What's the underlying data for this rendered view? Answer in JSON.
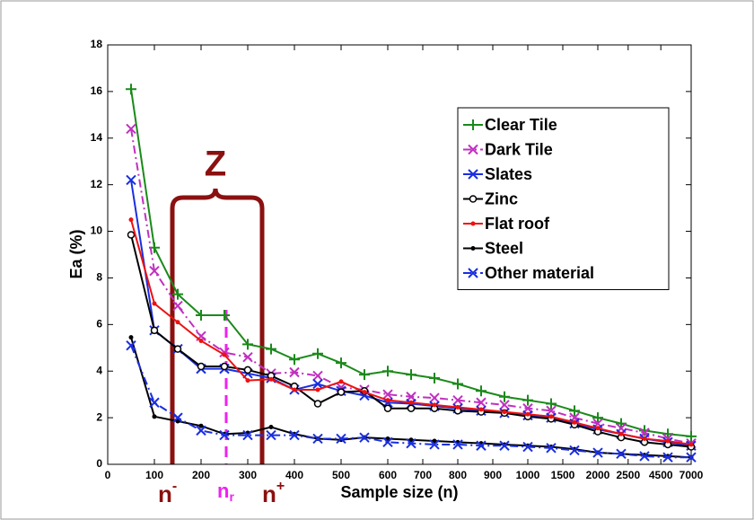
{
  "chart_data": {
    "type": "line",
    "x_label": "Sample size (n)",
    "y_label": "Ea (%)",
    "x": [
      1,
      2,
      3,
      4,
      5,
      6,
      7,
      8,
      9,
      10,
      11,
      12,
      13,
      14,
      15,
      16,
      17,
      18,
      19,
      20,
      21,
      22,
      23,
      24,
      25
    ],
    "xlim": [
      0,
      25
    ],
    "xticks": [
      {
        "value": 0,
        "label": "0"
      },
      {
        "value": 2,
        "label": "100"
      },
      {
        "value": 4,
        "label": "200"
      },
      {
        "value": 6,
        "label": "300"
      },
      {
        "value": 8,
        "label": "400"
      },
      {
        "value": 10,
        "label": "500"
      },
      {
        "value": 12,
        "label": "600"
      },
      {
        "value": 13.5,
        "label": "700"
      },
      {
        "value": 15,
        "label": "800"
      },
      {
        "value": 16.5,
        "label": "900"
      },
      {
        "value": 18,
        "label": "1000"
      },
      {
        "value": 19.5,
        "label": "1500"
      },
      {
        "value": 21,
        "label": "2000"
      },
      {
        "value": 22.3,
        "label": "2500"
      },
      {
        "value": 23.7,
        "label": "4500"
      },
      {
        "value": 25,
        "label": "7000"
      }
    ],
    "ylim": [
      0,
      18
    ],
    "yticks": [
      0,
      2,
      4,
      6,
      8,
      10,
      12,
      14,
      16,
      18
    ],
    "legend": "upper right",
    "series": [
      {
        "name": "Clear Tile",
        "color": "#1a8a1a",
        "marker": "plus",
        "dash": "solid",
        "values": [
          16.1,
          9.3,
          7.3,
          6.4,
          6.4,
          5.15,
          4.95,
          4.5,
          4.75,
          4.35,
          3.85,
          4.0,
          3.85,
          3.7,
          3.45,
          3.15,
          2.9,
          2.75,
          2.6,
          2.3,
          2.0,
          1.75,
          1.45,
          1.3,
          1.2
        ]
      },
      {
        "name": "Dark Tile",
        "color": "#c030c0",
        "marker": "x",
        "dash": "dashdot",
        "values": [
          14.4,
          8.3,
          6.8,
          5.5,
          4.8,
          4.6,
          3.9,
          3.95,
          3.8,
          3.3,
          3.2,
          3.0,
          2.9,
          2.85,
          2.75,
          2.65,
          2.55,
          2.4,
          2.3,
          2.0,
          1.75,
          1.55,
          1.35,
          1.1,
          0.9
        ]
      },
      {
        "name": "Slates",
        "color": "#1a2ee0",
        "marker": "x",
        "dash": "solid",
        "values": [
          12.2,
          5.75,
          4.95,
          4.1,
          4.1,
          3.9,
          3.7,
          3.2,
          3.45,
          3.15,
          2.95,
          2.65,
          2.6,
          2.5,
          2.4,
          2.3,
          2.2,
          2.1,
          2.0,
          1.75,
          1.5,
          1.3,
          1.1,
          0.95,
          0.8
        ]
      },
      {
        "name": "Zinc",
        "color": "#000000",
        "marker": "circle",
        "dash": "solid",
        "values": [
          9.85,
          5.75,
          4.95,
          4.2,
          4.2,
          4.05,
          3.8,
          3.35,
          2.6,
          3.1,
          3.15,
          2.4,
          2.4,
          2.4,
          2.3,
          2.25,
          2.2,
          2.05,
          1.95,
          1.7,
          1.4,
          1.15,
          0.95,
          0.85,
          0.75
        ]
      },
      {
        "name": "Flat roof",
        "color": "#ee1111",
        "marker": "dot",
        "dash": "solid",
        "values": [
          10.5,
          6.9,
          6.1,
          5.3,
          4.7,
          3.6,
          3.65,
          3.2,
          3.2,
          3.55,
          3.1,
          2.75,
          2.65,
          2.55,
          2.45,
          2.35,
          2.25,
          2.15,
          2.05,
          1.8,
          1.55,
          1.3,
          1.1,
          1.0,
          0.85
        ]
      },
      {
        "name": "Steel",
        "color": "#000000",
        "marker": "dot",
        "dash": "solid",
        "values": [
          5.45,
          2.05,
          1.85,
          1.65,
          1.3,
          1.35,
          1.6,
          1.3,
          1.1,
          1.05,
          1.15,
          1.1,
          1.05,
          1.0,
          0.95,
          0.9,
          0.85,
          0.8,
          0.75,
          0.65,
          0.5,
          0.45,
          0.4,
          0.35,
          0.3
        ]
      },
      {
        "name": "Other material",
        "color": "#1a2ee0",
        "marker": "x",
        "dash": "dashdot",
        "values": [
          5.1,
          2.65,
          2.0,
          1.45,
          1.25,
          1.25,
          1.25,
          1.25,
          1.1,
          1.1,
          1.15,
          0.95,
          0.9,
          0.85,
          0.85,
          0.8,
          0.8,
          0.75,
          0.7,
          0.6,
          0.5,
          0.45,
          0.35,
          0.3,
          0.3
        ]
      }
    ],
    "annotations": {
      "zone": "Z",
      "n_minus": {
        "base": "n",
        "sup": "-"
      },
      "n_r": {
        "base": "n",
        "sub": "r"
      },
      "n_plus": {
        "base": "n",
        "sup": "+"
      }
    }
  }
}
